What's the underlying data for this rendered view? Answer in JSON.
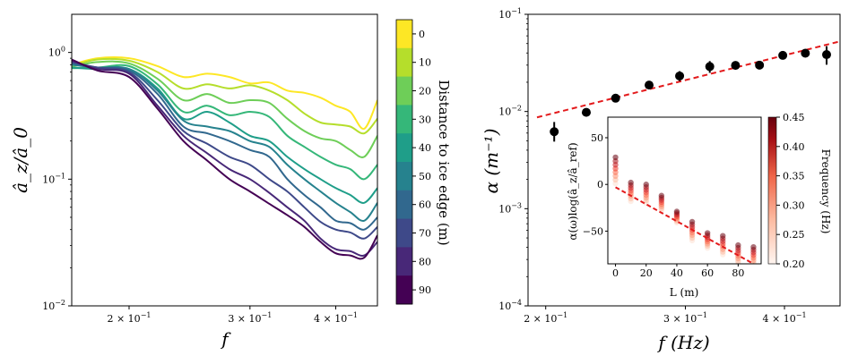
{
  "chart_data": [
    {
      "type": "line",
      "xlabel": "f",
      "ylabel": "â_z/â_0",
      "x_scale": "log",
      "y_scale": "log",
      "xlim": [
        0.165,
        0.46
      ],
      "ylim": [
        0.01,
        2.0
      ],
      "x_ticks": [
        {
          "value": 0.2,
          "base": "2 × 10",
          "exp": "−1"
        },
        {
          "value": 0.3,
          "base": "3 × 10",
          "exp": "−1"
        },
        {
          "value": 0.4,
          "base": "4 × 10",
          "exp": "−1"
        }
      ],
      "y_ticks": [
        {
          "value": 1.0,
          "base": "10",
          "exp": "0"
        },
        {
          "value": 0.1,
          "base": "10",
          "exp": "−1"
        },
        {
          "value": 0.01,
          "base": "10",
          "exp": "−2"
        }
      ],
      "x": [
        0.165,
        0.18,
        0.2,
        0.22,
        0.24,
        0.26,
        0.28,
        0.3,
        0.32,
        0.34,
        0.36,
        0.38,
        0.4,
        0.42,
        0.44,
        0.46
      ],
      "series": [
        {
          "distance": 0,
          "color": "#fde725",
          "values": [
            0.8,
            0.9,
            0.9,
            0.78,
            0.64,
            0.68,
            0.64,
            0.57,
            0.58,
            0.5,
            0.48,
            0.44,
            0.38,
            0.34,
            0.25,
            0.42
          ]
        },
        {
          "distance": 10,
          "color": "#b5de2b",
          "values": [
            0.78,
            0.88,
            0.86,
            0.7,
            0.52,
            0.56,
            0.52,
            0.55,
            0.5,
            0.42,
            0.33,
            0.28,
            0.27,
            0.26,
            0.23,
            0.3
          ]
        },
        {
          "distance": 20,
          "color": "#6ece58",
          "values": [
            0.77,
            0.84,
            0.82,
            0.62,
            0.42,
            0.47,
            0.4,
            0.42,
            0.4,
            0.3,
            0.24,
            0.21,
            0.2,
            0.17,
            0.15,
            0.22
          ]
        },
        {
          "distance": 30,
          "color": "#35b779",
          "values": [
            0.75,
            0.76,
            0.78,
            0.56,
            0.34,
            0.38,
            0.32,
            0.34,
            0.31,
            0.22,
            0.18,
            0.15,
            0.13,
            0.12,
            0.1,
            0.13
          ]
        },
        {
          "distance": 40,
          "color": "#1f9e89",
          "values": [
            0.76,
            0.74,
            0.74,
            0.52,
            0.3,
            0.34,
            0.28,
            0.22,
            0.2,
            0.15,
            0.12,
            0.1,
            0.085,
            0.075,
            0.065,
            0.085
          ]
        },
        {
          "distance": 50,
          "color": "#26828e",
          "values": [
            0.8,
            0.76,
            0.74,
            0.5,
            0.29,
            0.26,
            0.24,
            0.2,
            0.18,
            0.13,
            0.1,
            0.08,
            0.065,
            0.055,
            0.047,
            0.065
          ]
        },
        {
          "distance": 60,
          "color": "#31688e",
          "values": [
            0.82,
            0.76,
            0.72,
            0.47,
            0.26,
            0.23,
            0.2,
            0.17,
            0.15,
            0.1,
            0.075,
            0.06,
            0.047,
            0.045,
            0.04,
            0.05
          ]
        },
        {
          "distance": 70,
          "color": "#3e4989",
          "values": [
            0.84,
            0.76,
            0.7,
            0.42,
            0.24,
            0.19,
            0.15,
            0.13,
            0.1,
            0.08,
            0.06,
            0.046,
            0.04,
            0.038,
            0.034,
            0.042
          ]
        },
        {
          "distance": 80,
          "color": "#482878",
          "values": [
            0.86,
            0.74,
            0.68,
            0.38,
            0.22,
            0.16,
            0.12,
            0.1,
            0.078,
            0.06,
            0.047,
            0.034,
            0.028,
            0.027,
            0.025,
            0.032
          ]
        },
        {
          "distance": 90,
          "color": "#440154",
          "values": [
            0.88,
            0.72,
            0.64,
            0.36,
            0.2,
            0.14,
            0.1,
            0.08,
            0.064,
            0.052,
            0.042,
            0.032,
            0.026,
            0.025,
            0.024,
            0.036
          ]
        }
      ],
      "colorbar": {
        "label": "Distance to ice edge (m)",
        "ticks": [
          "0",
          "10",
          "20",
          "30",
          "40",
          "50",
          "60",
          "70",
          "80",
          "90"
        ],
        "colors": [
          "#fde725",
          "#b5de2b",
          "#6ece58",
          "#35b779",
          "#1f9e89",
          "#26828e",
          "#31688e",
          "#3e4989",
          "#482878",
          "#440154"
        ]
      }
    },
    {
      "type": "scatter",
      "xlabel": "f (Hz)",
      "ylabel": "α (m⁻¹)",
      "x_scale": "log",
      "y_scale": "log",
      "xlim": [
        0.19,
        0.47
      ],
      "ylim": [
        0.0001,
        0.1
      ],
      "x_ticks": [
        {
          "value": 0.2,
          "base": "2 × 10",
          "exp": "−1"
        },
        {
          "value": 0.3,
          "base": "3 × 10",
          "exp": "−1"
        },
        {
          "value": 0.4,
          "base": "4 × 10",
          "exp": "−1"
        }
      ],
      "y_ticks": [
        {
          "value": 0.1,
          "base": "10",
          "exp": "−1"
        },
        {
          "value": 0.01,
          "base": "10",
          "exp": "−2"
        },
        {
          "value": 0.001,
          "base": "10",
          "exp": "−3"
        },
        {
          "value": 0.0001,
          "base": "10",
          "exp": "−4"
        }
      ],
      "points": [
        {
          "x": 0.205,
          "y": 0.0062,
          "lo": 0.0049,
          "hi": 0.0078
        },
        {
          "x": 0.225,
          "y": 0.0098,
          "lo": 0.0094,
          "hi": 0.0102
        },
        {
          "x": 0.245,
          "y": 0.0137,
          "lo": 0.0129,
          "hi": 0.0145
        },
        {
          "x": 0.27,
          "y": 0.0187,
          "lo": 0.0177,
          "hi": 0.0197
        },
        {
          "x": 0.295,
          "y": 0.0232,
          "lo": 0.0206,
          "hi": 0.026
        },
        {
          "x": 0.322,
          "y": 0.029,
          "lo": 0.025,
          "hi": 0.033
        },
        {
          "x": 0.347,
          "y": 0.0298,
          "lo": 0.0278,
          "hi": 0.0318
        },
        {
          "x": 0.372,
          "y": 0.03,
          "lo": 0.0284,
          "hi": 0.0316
        },
        {
          "x": 0.398,
          "y": 0.0378,
          "lo": 0.0358,
          "hi": 0.0398
        },
        {
          "x": 0.425,
          "y": 0.0398,
          "lo": 0.0378,
          "hi": 0.0418
        },
        {
          "x": 0.452,
          "y": 0.0385,
          "lo": 0.0303,
          "hi": 0.047
        }
      ],
      "fit": {
        "x": [
          0.195,
          0.467
        ],
        "y": [
          0.0087,
          0.052
        ],
        "color": "#e31a1c"
      },
      "inset": {
        "xlabel": "L (m)",
        "ylabel": "α(ω)log(â_z/â_ref)",
        "xlim": [
          -5,
          95
        ],
        "ylim": [
          -85,
          72
        ],
        "x_ticks": [
          0,
          20,
          40,
          60,
          80
        ],
        "x_tick_labels": [
          "0",
          "20",
          "40",
          "60",
          "80"
        ],
        "y_ticks": [
          50,
          0,
          -50
        ],
        "y_tick_labels": [
          "50",
          "0",
          "−50"
        ],
        "L": [
          0,
          10,
          20,
          30,
          40,
          50,
          60,
          70,
          80,
          90
        ],
        "mean": [
          15,
          -8,
          -10,
          -20,
          -35,
          -50,
          -60,
          -65,
          -75,
          -77
        ],
        "spread": [
          14,
          10,
          10,
          8,
          6,
          10,
          8,
          10,
          10,
          10
        ],
        "fit": {
          "x": [
            0,
            90
          ],
          "y": [
            -3,
            -85
          ],
          "color": "#e31a1c"
        },
        "colorbar": {
          "label": "Frequency (Hz)",
          "range": [
            0.2,
            0.45
          ],
          "ticks": [
            "0.45",
            "0.40",
            "0.35",
            "0.30",
            "0.25",
            "0.20"
          ],
          "low_color": "#fff5f0",
          "high_color": "#67000d"
        }
      }
    }
  ]
}
